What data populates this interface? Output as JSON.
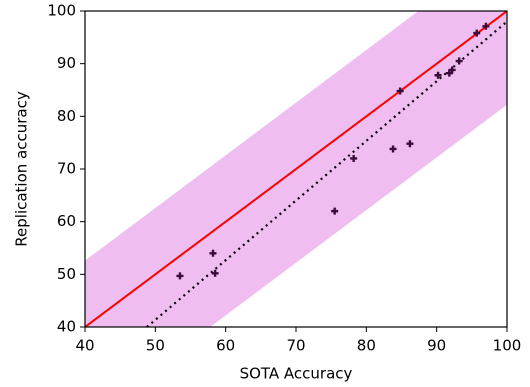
{
  "chart_data": {
    "type": "scatter",
    "xlabel": "SOTA Accuracy",
    "ylabel": "Replication accuracy",
    "xlim": [
      40,
      100
    ],
    "ylim": [
      40,
      100
    ],
    "xticks": [
      40,
      50,
      60,
      70,
      80,
      90,
      100
    ],
    "yticks": [
      40,
      50,
      60,
      70,
      80,
      90,
      100
    ],
    "band": {
      "color": "#efbdef",
      "x": [
        40,
        87.4,
        100,
        100,
        57.8,
        40
      ],
      "y": [
        52.6,
        100,
        100,
        82.2,
        40,
        40
      ]
    },
    "lines": [
      {
        "color": "#ff0000",
        "style": "solid",
        "x": [
          40,
          100
        ],
        "y": [
          40,
          100
        ]
      },
      {
        "color": "#000000",
        "style": "dotted",
        "x": [
          48.8,
          100
        ],
        "y": [
          40,
          98
        ]
      }
    ],
    "series": [
      {
        "color": "#3a0c3a",
        "x": [
          53.5,
          58.2,
          58.5,
          75.5,
          78.2,
          83.8,
          86.2,
          84.8,
          90.2,
          91.8,
          92.2,
          93.2,
          95.7,
          97
        ],
        "y": [
          49.7,
          54,
          50.2,
          62,
          72,
          73.8,
          74.8,
          84.8,
          87.8,
          88.2,
          88.8,
          90.5,
          95.8,
          97.1
        ]
      }
    ]
  }
}
